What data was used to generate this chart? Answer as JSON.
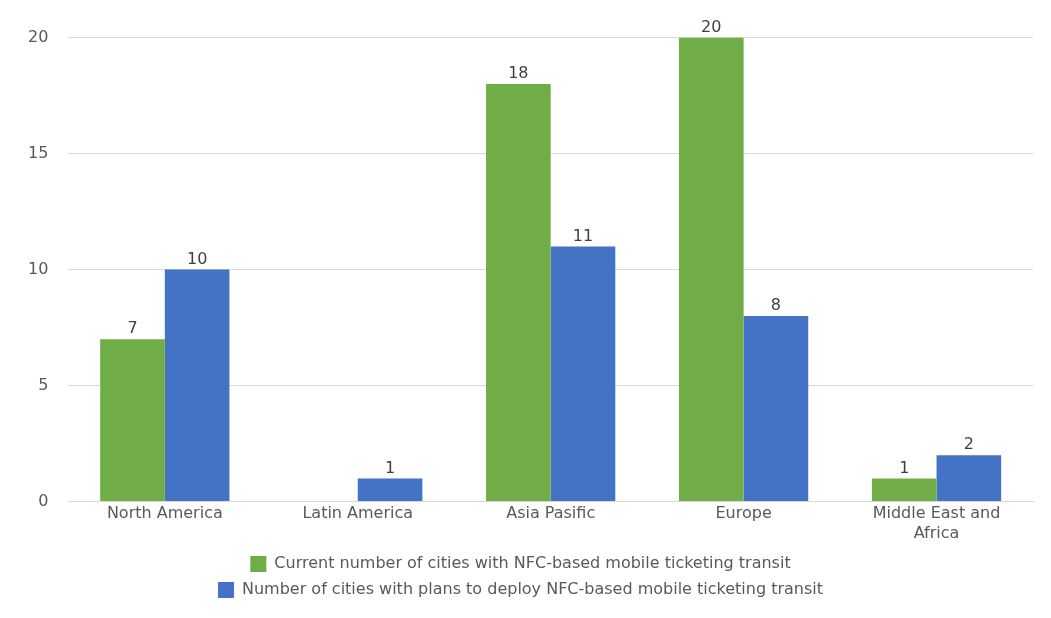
{
  "chart_data": {
    "type": "bar",
    "categories": [
      "North America",
      "Latin America",
      "Asia Pasific",
      "Europe",
      "Middle East and Africa"
    ],
    "series": [
      {
        "name": "Current number of cities with NFC-based mobile ticketing transit",
        "color": "#70ad47",
        "values": [
          7,
          null,
          18,
          20,
          1
        ]
      },
      {
        "name": "Number of cities with plans to deploy NFC-based mobile ticketing transit",
        "color": "#4472c4",
        "values": [
          10,
          1,
          11,
          8,
          2
        ]
      }
    ],
    "ylim": [
      0,
      20
    ],
    "yticks": [
      0,
      5,
      10,
      15,
      20
    ],
    "grid": "y",
    "legend": "bottom",
    "data_labels": true
  }
}
